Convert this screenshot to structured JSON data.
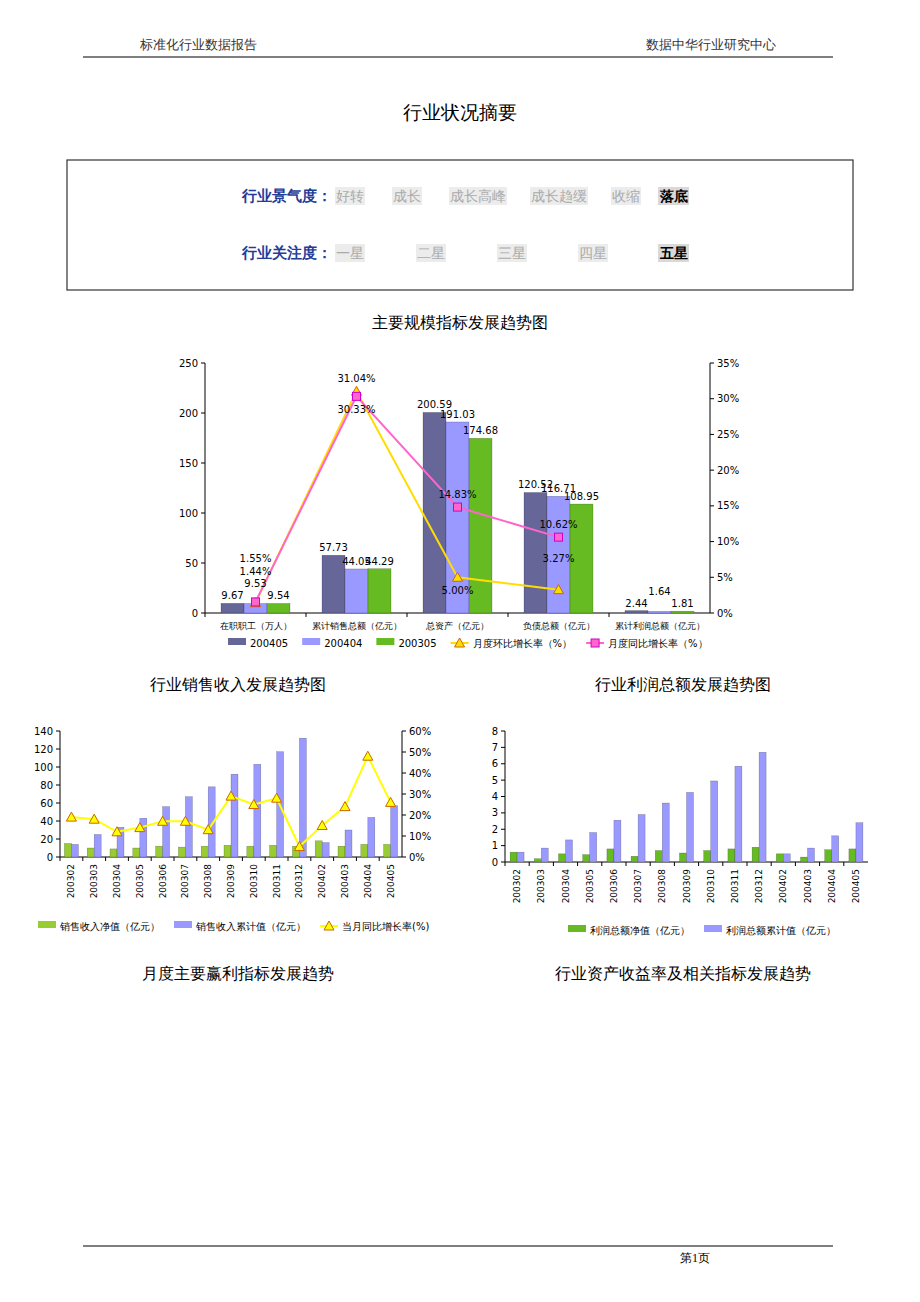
{
  "header": {
    "left": "标准化行业数据报告",
    "right": "数据中华行业研究中心"
  },
  "title": "行业状况摘要",
  "summary": {
    "rows": [
      {
        "label": "行业景气度：",
        "options": [
          "好转",
          "成长",
          "成长高峰",
          "成长趋缓",
          "收缩",
          "落底"
        ],
        "selected": 5
      },
      {
        "label": "行业关注度：",
        "options": [
          "一星",
          "二星",
          "三星",
          "四星",
          "五星"
        ],
        "selected": 4
      }
    ]
  },
  "chart_data": [
    {
      "type": "bar",
      "title": "主要规模指标发展趋势图",
      "categories": [
        "在职职工（万人）",
        "累计销售总额（亿元）",
        "总资产（亿元）",
        "负债总额（亿元）",
        "累计利润总额（亿元）"
      ],
      "series": [
        {
          "name": "200405",
          "color": "#666699",
          "values": [
            9.67,
            57.73,
            200.59,
            120.52,
            2.44
          ]
        },
        {
          "name": "200404",
          "color": "#9999ff",
          "values": [
            9.53,
            44.05,
            191.03,
            116.71,
            1.64
          ]
        },
        {
          "name": "200305",
          "color": "#66bb22",
          "values": [
            9.54,
            44.29,
            174.68,
            108.95,
            1.81
          ]
        },
        {
          "name": "月度环比增长率（%）",
          "type": "line",
          "axis": "y2",
          "color": "#ffdd00",
          "marker": "triangle",
          "values": [
            1.44,
            31.04,
            5.0,
            3.27,
            null
          ],
          "value_labels": [
            "1.44%",
            "31.04%",
            "5.00%",
            "3.27%",
            null
          ]
        },
        {
          "name": "月度同比增长率（%）",
          "type": "line",
          "axis": "y2",
          "color": "#ff66cc",
          "marker": "square",
          "values": [
            1.55,
            30.33,
            14.83,
            10.62,
            null
          ],
          "value_labels": [
            "1.55%",
            "30.33%",
            "14.83%",
            "10.62%",
            null
          ]
        }
      ],
      "ylim": [
        0,
        250
      ],
      "yticks": [
        0,
        50,
        100,
        150,
        200,
        250
      ],
      "y2lim": [
        0,
        35
      ],
      "y2ticks": [
        {
          "value": 0,
          "label": "0%"
        },
        {
          "value": 5,
          "label": "5%"
        },
        {
          "value": 10,
          "label": "10%"
        },
        {
          "value": 15,
          "label": "15%"
        },
        {
          "value": 20,
          "label": "20%"
        },
        {
          "value": 25,
          "label": "25%"
        },
        {
          "value": 30,
          "label": "30%"
        },
        {
          "value": 35,
          "label": "35%"
        }
      ],
      "data_labels": true,
      "grid": false,
      "legend": "bottom"
    },
    {
      "type": "bar",
      "title": "行业销售收入发展趋势图",
      "categories": [
        "200302",
        "200303",
        "200304",
        "200305",
        "200306",
        "200307",
        "200308",
        "200309",
        "200310",
        "200311",
        "200312",
        "200402",
        "200403",
        "200404",
        "200405"
      ],
      "series": [
        {
          "name": "销售收入净值（亿元）",
          "color": "#99cc33",
          "values": [
            15,
            10,
            9,
            10,
            12,
            11,
            12,
            13,
            12,
            13,
            12,
            18,
            12,
            14,
            14
          ]
        },
        {
          "name": "销售收入累计值（亿元）",
          "color": "#9999ff",
          "values": [
            14,
            25,
            33,
            43,
            56,
            67,
            78,
            92,
            103,
            117,
            132,
            16,
            30,
            44,
            57
          ]
        },
        {
          "name": "当月同比增长率(%)",
          "type": "line",
          "axis": "y2",
          "color": "#ffff00",
          "marker": "triangle",
          "values": [
            19,
            18,
            12,
            14,
            17,
            17,
            13,
            29,
            25,
            28,
            5,
            15,
            24,
            48,
            26
          ]
        }
      ],
      "ylim": [
        0,
        140
      ],
      "yticks": [
        0,
        20,
        40,
        60,
        80,
        100,
        120,
        140
      ],
      "y2lim": [
        0,
        60
      ],
      "y2ticks": [
        {
          "value": 0,
          "label": "0%"
        },
        {
          "value": 10,
          "label": "10%"
        },
        {
          "value": 20,
          "label": "20%"
        },
        {
          "value": 30,
          "label": "30%"
        },
        {
          "value": 40,
          "label": "40%"
        },
        {
          "value": 50,
          "label": "50%"
        },
        {
          "value": 60,
          "label": "60%"
        }
      ],
      "data_labels": false,
      "grid": false,
      "legend": "bottom"
    },
    {
      "type": "bar",
      "title": "行业利润总额发展趋势图",
      "categories": [
        "200302",
        "200303",
        "200304",
        "200305",
        "200306",
        "200307",
        "200308",
        "200309",
        "200310",
        "200311",
        "200312",
        "200402",
        "200403",
        "200404",
        "200405"
      ],
      "series": [
        {
          "name": "利润总额净值（亿元）",
          "color": "#66bb22",
          "values": [
            0.6,
            0.2,
            0.5,
            0.45,
            0.8,
            0.35,
            0.7,
            0.55,
            0.7,
            0.8,
            0.9,
            0.5,
            0.3,
            0.75,
            0.8
          ]
        },
        {
          "name": "利润总额累计值（亿元）",
          "color": "#9999ff",
          "values": [
            0.6,
            0.85,
            1.35,
            1.8,
            2.55,
            2.9,
            3.6,
            4.25,
            4.95,
            5.85,
            6.7,
            0.5,
            0.85,
            1.6,
            2.4
          ]
        }
      ],
      "ylim": [
        0,
        8
      ],
      "yticks": [
        0,
        1,
        2,
        3,
        4,
        5,
        6,
        7,
        8
      ],
      "data_labels": false,
      "grid": false,
      "legend": "bottom"
    }
  ],
  "sections": [
    "月度主要赢利指标发展趋势",
    "行业资产收益率及相关指标发展趋势"
  ],
  "footer": "第1页"
}
